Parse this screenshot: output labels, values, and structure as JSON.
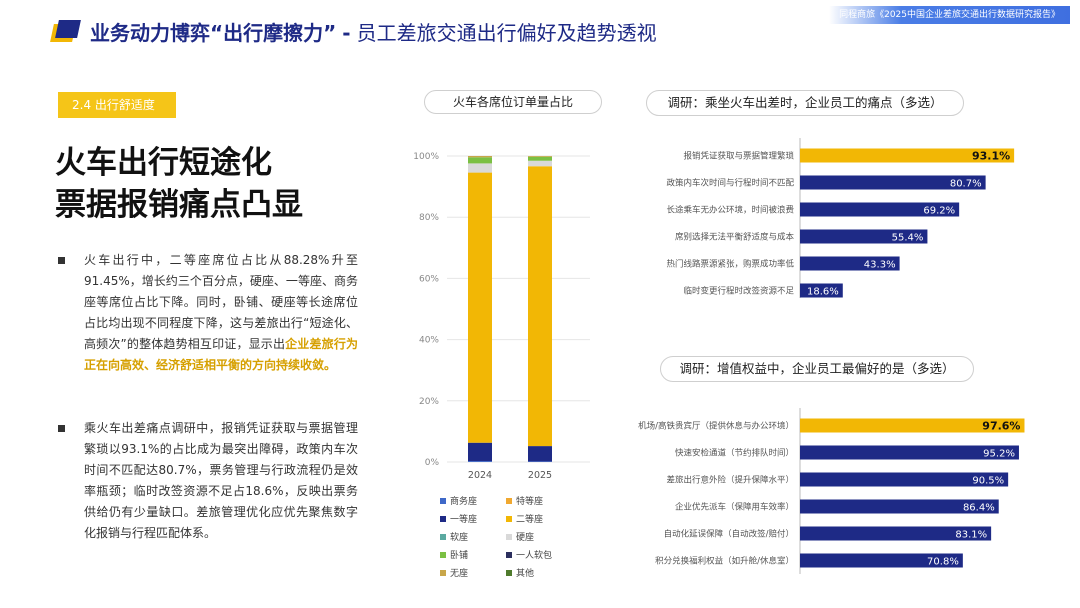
{
  "header": {
    "title_main": "业务动力博弈“出行摩擦力”",
    "separator": "-",
    "title_sub": "员工差旅交通出行偏好及趋势透视",
    "source_tag": "同程商旅《2025中国企业差旅交通出行数据研究报告》"
  },
  "left": {
    "section_tag": "2.4 出行舒适度",
    "title_line1": "火车出行短途化",
    "title_line2": "票据报销痛点凸显",
    "para1_text": "火车出行中，二等座席位占比从88.28%升至91.45%，增长约三个百分点，硬座、一等座、商务座等席位占比下降。同时，卧铺、硬座等长途席位占比均出现不同程度下降，这与差旅出行“短途化、高频次”的整体趋势相互印证，显示出",
    "para1_highlight": "企业差旅行为正在向高效、经济舒适相平衡的方向持续收敛。",
    "para2_text": "乘火车出差痛点调研中，报销凭证获取与票据管理繁琐以93.1%的占比成为最突出障碍，政策内车次时间不匹配达80.7%，票务管理与行政流程仍是效率瓶颈；临时改签资源不足占18.6%，反映出票务供给仍有少量缺口。差旅管理优化应优先聚焦数字化报销与行程匹配体系。"
  },
  "colors": {
    "navy": "#1e2a86",
    "yellow": "#f2b705",
    "green": "#7bc043",
    "gray": "#d9d9d9"
  },
  "chart_data": [
    {
      "type": "bar",
      "stacked": true,
      "title": "火车各席位订单量占比",
      "categories": [
        "2024",
        "2025"
      ],
      "ylim": [
        0,
        100
      ],
      "yticks": [
        "0%",
        "20%",
        "40%",
        "60%",
        "80%",
        "100%"
      ],
      "grid": true,
      "legend_position": "bottom",
      "series": [
        {
          "name": "商务座",
          "values": [
            0.3,
            0.2
          ],
          "color": "#3e68c8"
        },
        {
          "name": "特等座",
          "values": [
            0.0,
            0.0
          ],
          "color": "#f0a830"
        },
        {
          "name": "一等座",
          "values": [
            6.0,
            5.0
          ],
          "color": "#1e2a86"
        },
        {
          "name": "二等座",
          "values": [
            88.28,
            91.45
          ],
          "color": "#f2b705"
        },
        {
          "name": "软座",
          "values": [
            0.0,
            0.0
          ],
          "color": "#5aa9a0"
        },
        {
          "name": "硬座",
          "values": [
            3.0,
            1.8
          ],
          "color": "#d9d9d9"
        },
        {
          "name": "卧铺",
          "values": [
            2.0,
            1.3
          ],
          "color": "#7bc043"
        },
        {
          "name": "一人软包",
          "values": [
            0.0,
            0.0
          ],
          "color": "#2b2f5e"
        },
        {
          "name": "无座",
          "values": [
            0.42,
            0.25
          ],
          "color": "#c8a64a"
        },
        {
          "name": "其他",
          "values": [
            0.0,
            0.0
          ],
          "color": "#4f7b2d"
        }
      ]
    },
    {
      "type": "bar",
      "orientation": "horizontal",
      "title": "调研：乘坐火车出差时，企业员工的痛点（多选）",
      "categories": [
        "报销凭证获取与票据管理繁琐",
        "政策内车次时间与行程时间不匹配",
        "长途乘车无办公环境，时间被浪费",
        "席别选择无法平衡舒适度与成本",
        "热门线路票源紧张，购票成功率低",
        "临时变更行程时改签资源不足"
      ],
      "values": [
        93.1,
        80.7,
        69.2,
        55.4,
        43.3,
        18.6
      ],
      "labels": [
        "93.1%",
        "80.7%",
        "69.2%",
        "55.4%",
        "43.3%",
        "18.6%"
      ],
      "xlim": [
        0,
        100
      ]
    },
    {
      "type": "bar",
      "orientation": "horizontal",
      "title": "调研：增值权益中，企业员工最偏好的是（多选）",
      "categories": [
        "机场/高铁贵宾厅（提供休息与办公环境）",
        "快速安检通道（节约排队时间）",
        "差旅出行意外险（提升保障水平）",
        "企业优先派车（保障用车效率）",
        "自动化延误保障（自动改签/赔付）",
        "积分兑换福利权益（如升舱/休息室）"
      ],
      "values": [
        97.6,
        95.2,
        90.5,
        86.4,
        83.1,
        70.8
      ],
      "labels": [
        "97.6%",
        "95.2%",
        "90.5%",
        "86.4%",
        "83.1%",
        "70.8%"
      ],
      "xlim": [
        0,
        100
      ]
    }
  ]
}
